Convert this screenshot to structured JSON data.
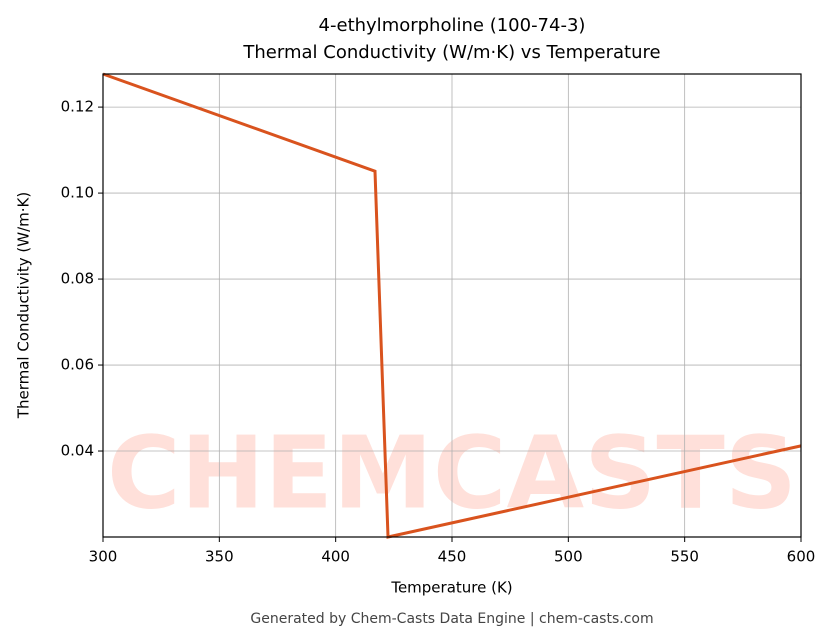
{
  "chart_data": {
    "type": "line",
    "title": "4-ethylmorpholine (100-74-3)",
    "subtitle": "Thermal Conductivity (W/m·K) vs Temperature",
    "x_label": "Temperature (K)",
    "y_label": "Thermal Conductivity (W/m·K)",
    "watermark": "CHEMCASTS",
    "footer": "Generated by Chem-Casts Data Engine | chem-casts.com",
    "x": [
      300,
      416.9,
      422.5,
      600
    ],
    "series": [
      {
        "name": "Thermal Conductivity",
        "color": "#d9531e",
        "values": [
          0.1277,
          0.1051,
          0.02,
          0.0412
        ]
      }
    ],
    "xlim": [
      300,
      600
    ],
    "xticks": [
      300,
      350,
      400,
      450,
      500,
      550,
      600
    ],
    "ylim": [
      0.02,
      0.1277
    ],
    "yticks": [
      0.04,
      0.06,
      0.08,
      {
        "value": 0.1,
        "label": "0.10"
      },
      0.12
    ],
    "grid": true
  }
}
